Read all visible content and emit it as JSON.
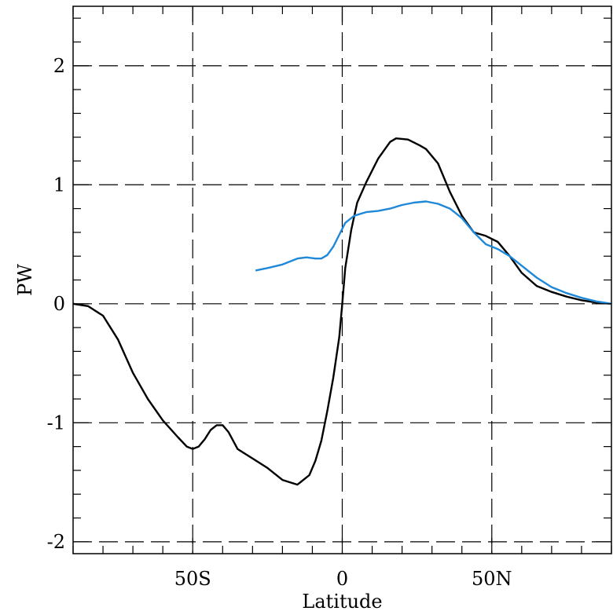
{
  "chart_data": {
    "type": "line",
    "title": "",
    "xlabel": "Latitude",
    "ylabel": "PW",
    "xlim": [
      -90,
      90
    ],
    "ylim": [
      -2.1,
      2.5
    ],
    "grid": true,
    "x_ticks": [
      {
        "value": -50,
        "label": "50S"
      },
      {
        "value": 0,
        "label": "0"
      },
      {
        "value": 50,
        "label": "50N"
      }
    ],
    "y_ticks": [
      {
        "value": -2,
        "label": "-2"
      },
      {
        "value": -1,
        "label": "-1"
      },
      {
        "value": 0,
        "label": "0"
      },
      {
        "value": 1,
        "label": "1"
      },
      {
        "value": 2,
        "label": "2"
      }
    ],
    "series": [
      {
        "color": "#000000",
        "x": [
          -90,
          -85,
          -80,
          -75,
          -70,
          -65,
          -60,
          -55,
          -52,
          -50,
          -48,
          -46,
          -44,
          -42,
          -40,
          -38,
          -35,
          -30,
          -25,
          -20,
          -15,
          -13,
          -11,
          -9,
          -7,
          -5,
          -3,
          -1,
          0,
          1,
          3,
          5,
          8,
          12,
          16,
          18,
          22,
          26,
          28,
          32,
          36,
          40,
          44,
          48,
          52,
          56,
          60,
          65,
          70,
          75,
          80,
          85,
          90
        ],
        "y": [
          0.0,
          -0.02,
          -0.1,
          -0.3,
          -0.58,
          -0.8,
          -0.98,
          -1.12,
          -1.2,
          -1.22,
          -1.2,
          -1.14,
          -1.06,
          -1.02,
          -1.02,
          -1.08,
          -1.22,
          -1.3,
          -1.38,
          -1.48,
          -1.52,
          -1.48,
          -1.44,
          -1.32,
          -1.15,
          -0.9,
          -0.62,
          -0.28,
          0.0,
          0.3,
          0.62,
          0.85,
          1.02,
          1.22,
          1.36,
          1.39,
          1.38,
          1.33,
          1.3,
          1.18,
          0.94,
          0.74,
          0.6,
          0.57,
          0.52,
          0.4,
          0.26,
          0.15,
          0.1,
          0.06,
          0.03,
          0.01,
          0.0
        ]
      },
      {
        "color": "#1f88d8",
        "x": [
          -29,
          -25,
          -20,
          -15,
          -12,
          -9,
          -7,
          -5,
          -3,
          -1,
          1,
          4,
          8,
          12,
          16,
          20,
          24,
          28,
          32,
          36,
          40,
          44,
          48,
          52,
          56,
          60,
          65,
          70,
          75,
          80,
          85,
          90
        ],
        "y": [
          0.28,
          0.3,
          0.33,
          0.38,
          0.39,
          0.38,
          0.38,
          0.41,
          0.48,
          0.58,
          0.68,
          0.74,
          0.77,
          0.78,
          0.8,
          0.83,
          0.85,
          0.86,
          0.84,
          0.8,
          0.72,
          0.6,
          0.5,
          0.46,
          0.4,
          0.32,
          0.22,
          0.14,
          0.09,
          0.05,
          0.02,
          0.0
        ]
      }
    ]
  }
}
